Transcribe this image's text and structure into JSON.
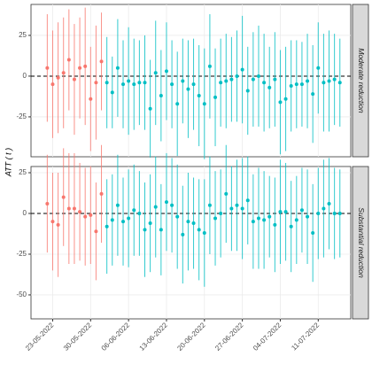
{
  "ylabel": "ATT ( t )",
  "chart_data": [
    {
      "type": "errorbar",
      "strip": "Moderate reduction",
      "grid": true,
      "hline": 0,
      "xlim": [
        "2022-05-19",
        "2022-07-17"
      ],
      "xticks": [
        {
          "value": "2022-05-23",
          "label": "23-05-2022"
        },
        {
          "value": "2022-05-30",
          "label": "30-05-2022"
        },
        {
          "value": "2022-06-06",
          "label": "06-06-2022"
        },
        {
          "value": "2022-06-13",
          "label": "13-06-2022"
        },
        {
          "value": "2022-06-20",
          "label": "20-06-2022"
        },
        {
          "value": "2022-06-27",
          "label": "27-06-2022"
        },
        {
          "value": "2022-07-04",
          "label": "04-07-2022"
        },
        {
          "value": "2022-07-11",
          "label": "11-07-2022"
        }
      ],
      "ylim": [
        -49.5,
        44
      ],
      "yticks": [
        -25,
        0,
        25
      ],
      "series": [
        {
          "color": "#F8766D",
          "x": [
            "2022-05-22",
            "2022-05-23",
            "2022-05-24",
            "2022-05-25",
            "2022-05-26",
            "2022-05-27",
            "2022-05-28",
            "2022-05-29",
            "2022-05-30",
            "2022-05-31",
            "2022-06-01"
          ],
          "values": [
            5,
            -5,
            -1,
            2,
            10,
            -2,
            5,
            6,
            -14,
            -4,
            9
          ],
          "error": [
            33,
            33,
            34,
            34,
            31,
            34,
            31,
            36,
            32,
            35,
            30
          ]
        },
        {
          "color": "#00BFC4",
          "x": [
            "2022-06-02",
            "2022-06-03",
            "2022-06-04",
            "2022-06-05",
            "2022-06-06",
            "2022-06-07",
            "2022-06-08",
            "2022-06-09",
            "2022-06-10",
            "2022-06-11",
            "2022-06-12",
            "2022-06-13",
            "2022-06-14",
            "2022-06-15",
            "2022-06-16",
            "2022-06-17",
            "2022-06-18",
            "2022-06-19",
            "2022-06-20",
            "2022-06-21",
            "2022-06-22",
            "2022-06-23",
            "2022-06-24",
            "2022-06-25",
            "2022-06-26",
            "2022-06-27",
            "2022-06-28",
            "2022-06-29",
            "2022-06-30",
            "2022-07-01",
            "2022-07-02",
            "2022-07-03",
            "2022-07-04",
            "2022-07-05",
            "2022-07-06",
            "2022-07-07",
            "2022-07-08",
            "2022-07-09",
            "2022-07-10",
            "2022-07-11",
            "2022-07-12",
            "2022-07-13",
            "2022-07-14",
            "2022-07-15"
          ],
          "values": [
            -4,
            -10,
            5,
            -5,
            -3,
            -5,
            -4,
            -4,
            -20,
            2,
            -12,
            3,
            -5,
            -17,
            -3,
            -8,
            -5,
            -12,
            -17,
            6,
            -13,
            -4,
            -3,
            -2,
            0,
            4,
            -9,
            -2,
            0,
            -4,
            -7,
            -2,
            -16,
            -14,
            -6,
            -5,
            -5,
            -3,
            -11,
            5,
            -4,
            -3,
            -2,
            -4
          ],
          "error": [
            28,
            22,
            30,
            27,
            33,
            28,
            26,
            29,
            30,
            32,
            28,
            30,
            27,
            32,
            26,
            30,
            28,
            31,
            34,
            32,
            30,
            27,
            29,
            26,
            28,
            33,
            27,
            29,
            31,
            30,
            25,
            29,
            32,
            32,
            28,
            27,
            26,
            29,
            30,
            28,
            30,
            31,
            28,
            27
          ]
        }
      ]
    },
    {
      "type": "errorbar",
      "strip": "Substantial reduction",
      "grid": true,
      "hline": 0,
      "xlim": [
        "2022-05-19",
        "2022-07-17"
      ],
      "xticks": [
        {
          "value": "2022-05-23",
          "label": "23-05-2022"
        },
        {
          "value": "2022-05-30",
          "label": "30-05-2022"
        },
        {
          "value": "2022-06-06",
          "label": "06-06-2022"
        },
        {
          "value": "2022-06-13",
          "label": "13-06-2022"
        },
        {
          "value": "2022-06-20",
          "label": "20-06-2022"
        },
        {
          "value": "2022-06-27",
          "label": "27-06-2022"
        },
        {
          "value": "2022-07-04",
          "label": "04-07-2022"
        },
        {
          "value": "2022-07-11",
          "label": "11-07-2022"
        }
      ],
      "ylim": [
        -64.7,
        28.8
      ],
      "yticks": [
        -50,
        -25,
        0,
        25
      ],
      "series": [
        {
          "color": "#F8766D",
          "x": [
            "2022-05-22",
            "2022-05-23",
            "2022-05-24",
            "2022-05-25",
            "2022-05-26",
            "2022-05-27",
            "2022-05-28",
            "2022-05-29",
            "2022-05-30",
            "2022-05-31",
            "2022-06-01"
          ],
          "values": [
            6,
            -5,
            -7,
            10,
            3,
            3,
            1,
            -2,
            -1,
            -11,
            12
          ],
          "error": [
            30,
            30,
            32,
            30,
            34,
            34,
            30,
            30,
            30,
            30,
            30
          ]
        },
        {
          "color": "#00BFC4",
          "x": [
            "2022-06-02",
            "2022-06-03",
            "2022-06-04",
            "2022-06-05",
            "2022-06-06",
            "2022-06-07",
            "2022-06-08",
            "2022-06-09",
            "2022-06-10",
            "2022-06-11",
            "2022-06-12",
            "2022-06-13",
            "2022-06-14",
            "2022-06-15",
            "2022-06-16",
            "2022-06-17",
            "2022-06-18",
            "2022-06-19",
            "2022-06-20",
            "2022-06-21",
            "2022-06-22",
            "2022-06-23",
            "2022-06-24",
            "2022-06-25",
            "2022-06-26",
            "2022-06-27",
            "2022-06-28",
            "2022-06-29",
            "2022-06-30",
            "2022-07-01",
            "2022-07-02",
            "2022-07-03",
            "2022-07-04",
            "2022-07-05",
            "2022-07-06",
            "2022-07-07",
            "2022-07-08",
            "2022-07-09",
            "2022-07-10",
            "2022-07-11",
            "2022-07-12",
            "2022-07-13",
            "2022-07-14",
            "2022-07-15"
          ],
          "values": [
            -8,
            -4,
            5,
            -5,
            -3,
            2,
            0,
            -10,
            -6,
            4,
            -10,
            7,
            5,
            -2,
            -13,
            -5,
            -6,
            -10,
            -12,
            5,
            -3,
            0,
            12,
            3,
            5,
            3,
            8,
            -5,
            -3,
            -4,
            -2,
            -7,
            1,
            1,
            -8,
            -4,
            2,
            -2,
            -12,
            0,
            3,
            6,
            0,
            0
          ],
          "error": [
            29,
            28,
            31,
            27,
            30,
            28,
            26,
            29,
            30,
            31,
            28,
            30,
            29,
            32,
            30,
            30,
            28,
            31,
            33,
            30,
            29,
            27,
            30,
            26,
            28,
            31,
            27,
            29,
            31,
            30,
            25,
            29,
            32,
            30,
            28,
            27,
            26,
            29,
            30,
            28,
            30,
            28,
            28,
            27
          ]
        }
      ]
    }
  ]
}
